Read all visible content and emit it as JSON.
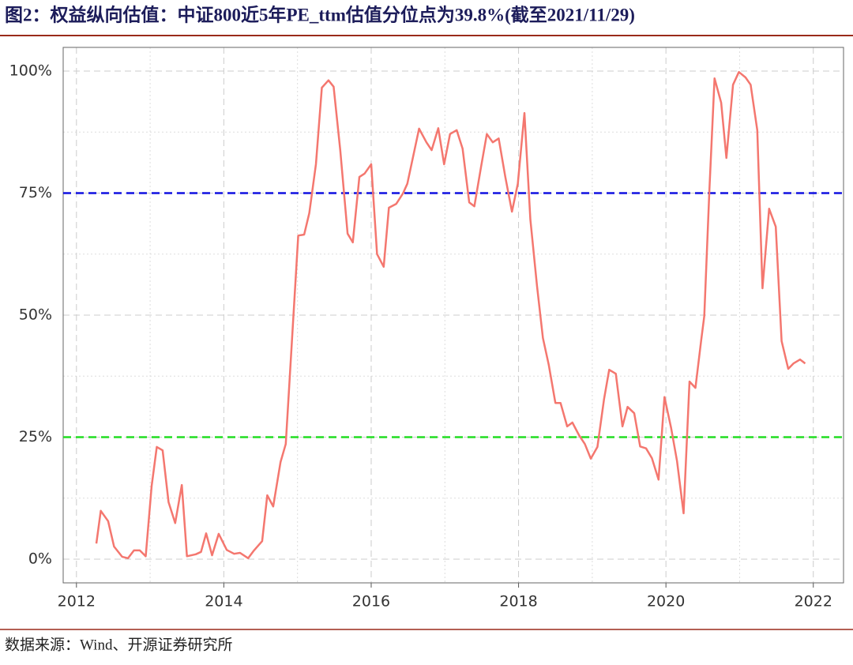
{
  "chart_data": {
    "type": "line",
    "title": "图2：权益纵向估值：中证800近5年PE_ttm估值分位点为39.8%(截至2021/11/29)",
    "source": "数据来源：Wind、开源证券研究所",
    "series": [
      {
        "color": "#f4776f",
        "x": [
          2012.27,
          2012.33,
          2012.43,
          2012.51,
          2012.62,
          2012.7,
          2012.78,
          2012.86,
          2012.94,
          2013.02,
          2013.09,
          2013.17,
          2013.25,
          2013.34,
          2013.43,
          2013.5,
          2013.62,
          2013.69,
          2013.76,
          2013.84,
          2013.93,
          2014.04,
          2014.14,
          2014.22,
          2014.33,
          2014.41,
          2014.52,
          2014.59,
          2014.67,
          2014.77,
          2014.84,
          2015.01,
          2015.09,
          2015.16,
          2015.25,
          2015.33,
          2015.42,
          2015.49,
          2015.58,
          2015.68,
          2015.75,
          2015.84,
          2015.91,
          2016.0,
          2016.08,
          2016.17,
          2016.24,
          2016.34,
          2016.43,
          2016.49,
          2016.65,
          2016.75,
          2016.82,
          2016.91,
          2016.99,
          2017.07,
          2017.16,
          2017.24,
          2017.33,
          2017.4,
          2017.49,
          2017.57,
          2017.65,
          2017.73,
          2017.82,
          2017.91,
          2017.99,
          2018.08,
          2018.16,
          2018.25,
          2018.33,
          2018.41,
          2018.5,
          2018.57,
          2018.66,
          2018.73,
          2018.82,
          2018.9,
          2018.98,
          2019.07,
          2019.16,
          2019.23,
          2019.32,
          2019.41,
          2019.48,
          2019.57,
          2019.65,
          2019.73,
          2019.81,
          2019.9,
          2019.98,
          2020.07,
          2020.15,
          2020.24,
          2020.32,
          2020.4,
          2020.48,
          2020.52,
          2020.59,
          2020.66,
          2020.75,
          2020.82,
          2020.91,
          2020.99,
          2021.08,
          2021.15,
          2021.24,
          2021.31,
          2021.4,
          2021.49,
          2021.57,
          2021.66,
          2021.73,
          2021.82,
          2021.89
        ],
        "values": [
          3.2,
          9.9,
          7.8,
          2.6,
          0.5,
          0.2,
          1.8,
          1.8,
          0.6,
          15,
          23,
          22.3,
          11.7,
          7.4,
          15.2,
          0.6,
          1,
          1.5,
          5.3,
          0.8,
          5.2,
          1.9,
          1.1,
          1.3,
          0.2,
          1.8,
          3.7,
          13.1,
          10.8,
          19.9,
          23.6,
          66.3,
          66.5,
          70.9,
          80.9,
          96.6,
          98.1,
          96.8,
          83.8,
          66.7,
          64.9,
          78.3,
          79,
          80.9,
          62.5,
          59.9,
          72,
          72.8,
          74.9,
          76.9,
          88.2,
          85.4,
          83.8,
          88.3,
          80.9,
          87.1,
          87.9,
          84.1,
          73.1,
          72.3,
          80.3,
          87.1,
          85.4,
          86.2,
          78.3,
          71.2,
          76.9,
          91.4,
          69.6,
          56,
          45.3,
          39.8,
          32,
          32,
          27.2,
          28,
          25.4,
          23.6,
          20.6,
          23,
          32.8,
          38.8,
          38,
          27.2,
          31.2,
          29.9,
          23.1,
          22.7,
          20.7,
          16.3,
          33.2,
          26.9,
          20.1,
          9.4,
          36.4,
          35.1,
          45,
          49.8,
          75.7,
          98.5,
          93.5,
          82.2,
          97.2,
          99.8,
          98.7,
          97.2,
          87.9,
          55.5,
          71.8,
          68.1,
          44.7,
          39,
          40.1,
          40.9,
          40.1
        ]
      }
    ],
    "reference_lines": [
      {
        "value": 75,
        "color": "#1010e0"
      },
      {
        "value": 25,
        "color": "#22dd22"
      }
    ],
    "xlim": [
      2011.82,
      2022.41
    ],
    "xticks": [
      2012,
      2014,
      2016,
      2018,
      2020,
      2022
    ],
    "ylim": [
      -4.85,
      104.85
    ],
    "yticks": [
      {
        "value": 0,
        "label": "0%"
      },
      {
        "value": 25,
        "label": "25%"
      },
      {
        "value": 50,
        "label": "50%"
      },
      {
        "value": 75,
        "label": "75%"
      },
      {
        "value": 100,
        "label": "100%"
      }
    ],
    "grid": true
  }
}
